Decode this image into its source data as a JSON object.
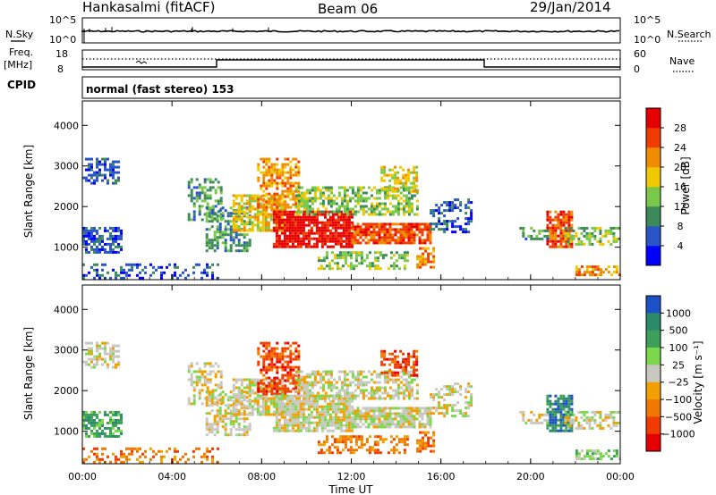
{
  "header": {
    "station": "Hankasalmi (fitACF)",
    "beam": "Beam 06",
    "date": "29/Jan/2014"
  },
  "panels": {
    "nsky": {
      "left_label": "N.Sky",
      "right_label": "N.Search",
      "left_ticks": [
        "10^5",
        "10^0"
      ],
      "right_ticks": [
        "10^5",
        "10^0"
      ]
    },
    "freq": {
      "left_label_1": "Freq.",
      "left_label_2": "[MHz]",
      "left_ticks": [
        "18",
        "8"
      ],
      "right_label": "Nave",
      "right_ticks": [
        "60",
        "0"
      ]
    },
    "cpid": {
      "label": "CPID",
      "value": "normal (fast stereo) 153"
    }
  },
  "chart_data": [
    {
      "type": "heatmap",
      "name": "power",
      "ylabel": "Slant Range [km]",
      "yticks": [
        "1000",
        "2000",
        "3000",
        "4000"
      ],
      "ylim": [
        200,
        4600
      ],
      "xlim": [
        0,
        24
      ],
      "colorbar_label": "Power [dB]",
      "colorbar_ticks": [
        "4",
        "8",
        "12",
        "16",
        "20",
        "24",
        "28"
      ],
      "colors": [
        "#0000ff",
        "#2a55c8",
        "#3c8a5a",
        "#7ac84a",
        "#f0c800",
        "#f08c00",
        "#f03c00",
        "#e60000"
      ]
    },
    {
      "type": "heatmap",
      "name": "velocity",
      "ylabel": "Slant Range [km]",
      "yticks": [
        "1000",
        "2000",
        "3000",
        "4000"
      ],
      "ylim": [
        200,
        4600
      ],
      "xlim": [
        0,
        24
      ],
      "xlabel": "Time UT",
      "xticks": [
        "00:00",
        "04:00",
        "08:00",
        "12:00",
        "16:00",
        "20:00",
        "00:00"
      ],
      "colorbar_label": "Velocity [m s⁻¹]",
      "colorbar_ticks": [
        "1000",
        "500",
        "100",
        "25",
        "−25",
        "−100",
        "−500",
        "−1000"
      ],
      "colors": [
        "#1e50c8",
        "#2a8a6a",
        "#3ca05a",
        "#7ad84a",
        "#c8c8c0",
        "#f0a000",
        "#f07800",
        "#f03c00",
        "#e60000"
      ]
    }
  ]
}
